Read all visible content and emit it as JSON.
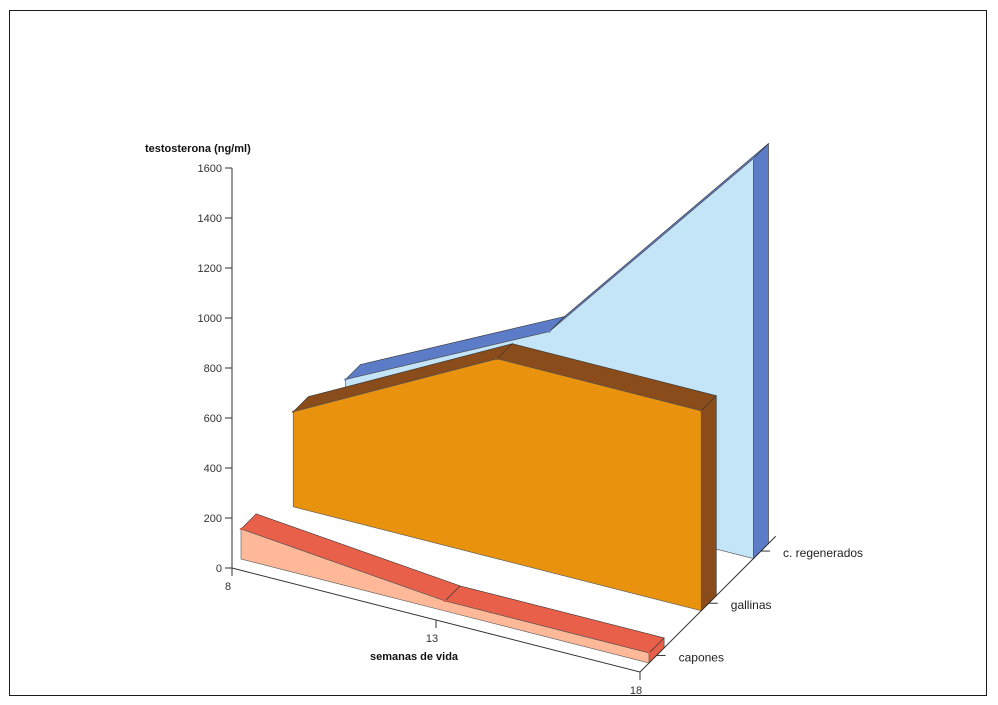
{
  "chart_data": {
    "type": "area",
    "style": "3d-ribbon",
    "title": "",
    "ylabel": "testosterona (ng/ml)",
    "xlabel": "semanas de vida",
    "ylim": [
      0,
      1600
    ],
    "yticks": [
      0,
      200,
      400,
      600,
      800,
      1000,
      1200,
      1400,
      1600
    ],
    "ytick_labels": [
      "0",
      "200",
      "400",
      "600",
      "800",
      "1000",
      "1200",
      "1400",
      "1600"
    ],
    "x": [
      8,
      13,
      18
    ],
    "xtick_labels": [
      "8",
      "13",
      "18"
    ],
    "series": [
      {
        "name": "c. regenerados",
        "values": [
          300,
          700,
          1600
        ],
        "color": "#c3e5f7",
        "edge_color": "#5d7cc8"
      },
      {
        "name": "gallinas",
        "values": [
          380,
          800,
          800
        ],
        "color": "#e8920e",
        "edge_color": "#8a4c1a"
      },
      {
        "name": "capones",
        "values": [
          120,
          40,
          40
        ],
        "color": "#ffb999",
        "edge_color": "#e8604a"
      }
    ],
    "grid": false,
    "legend": "none"
  }
}
